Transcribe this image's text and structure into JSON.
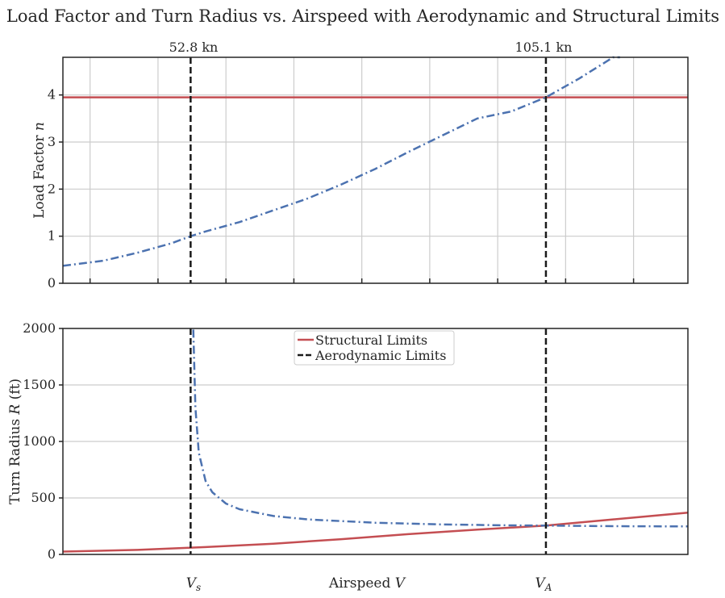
{
  "chart_data": [
    {
      "type": "line",
      "title": "Load Factor and Turn Radius vs. Airspeed with Aerodynamic and Structural Limits",
      "ylabel": "Load Factor n",
      "xlim": [
        34,
        126
      ],
      "ylim": [
        0,
        4.8
      ],
      "yticks": [
        0,
        1,
        2,
        3,
        4
      ],
      "vlines": [
        {
          "x": 52.8,
          "label": "52.8 kn",
          "color": "#1a1a1a",
          "style": "dashed"
        },
        {
          "x": 105.1,
          "label": "105.1 kn",
          "color": "#1a1a1a",
          "style": "dashed"
        }
      ],
      "hline": {
        "y": 3.95,
        "color": "#c44e52"
      },
      "series": [
        {
          "color": "#4c72b0",
          "style": "dashdot",
          "x": [
            34,
            40,
            45,
            50,
            52.8,
            55,
            60,
            65,
            70,
            75,
            80,
            85,
            90,
            95,
            100,
            105.1,
            110,
            115,
            116
          ],
          "values": [
            0.37,
            0.48,
            0.65,
            0.85,
            1.0,
            1.1,
            1.3,
            1.55,
            1.8,
            2.1,
            2.43,
            2.8,
            3.15,
            3.5,
            3.65,
            3.95,
            4.35,
            4.8,
            4.8
          ]
        }
      ],
      "grid": true
    },
    {
      "type": "line",
      "ylabel": "Turn Radius R (ft)",
      "xlabel": "Airspeed V",
      "xlim": [
        34,
        126
      ],
      "ylim": [
        0,
        2000
      ],
      "yticks": [
        0,
        500,
        1000,
        1500,
        2000
      ],
      "xtick_labels": [
        {
          "x": 52.8,
          "label": "V_s"
        },
        {
          "x": 105.1,
          "label": "V_A"
        }
      ],
      "legend": {
        "placement": "top-center",
        "entries": [
          {
            "name": "Structural Limits",
            "color": "#c44e52",
            "style": "solid"
          },
          {
            "name": "Aerodynamic Limits",
            "color": "#1a1a1a",
            "style": "dashed"
          }
        ]
      },
      "series": [
        {
          "name": "Structural Limits",
          "color": "#c44e52",
          "style": "solid",
          "x": [
            34,
            45,
            55,
            65,
            75,
            85,
            95,
            105.1,
            115,
            126
          ],
          "values": [
            25,
            40,
            65,
            95,
            135,
            180,
            220,
            255,
            310,
            370
          ]
        },
        {
          "color": "#4c72b0",
          "style": "dashdot",
          "x": [
            53.2,
            53.5,
            54,
            55,
            56,
            58,
            60,
            65,
            70,
            80,
            90,
            100,
            105.1,
            115,
            126
          ],
          "values": [
            1990,
            1300,
            900,
            650,
            550,
            450,
            400,
            340,
            310,
            280,
            265,
            257,
            255,
            250,
            248
          ]
        }
      ],
      "vlines": [
        {
          "x": 52.8,
          "color": "#1a1a1a",
          "style": "dashed"
        },
        {
          "x": 105.1,
          "color": "#1a1a1a",
          "style": "dashed"
        }
      ],
      "grid": true
    }
  ],
  "text": {
    "title": "Load Factor and Turn Radius vs. Airspeed with Aerodynamic and Structural Limits",
    "top_ylabel_main": "Load Factor ",
    "top_ylabel_var": "n",
    "bot_ylabel_main": "Turn Radius ",
    "bot_ylabel_var": "R",
    "bot_ylabel_unit": " (ft)",
    "xlabel_main": "Airspeed ",
    "xlabel_var": "V",
    "vs_var": "V",
    "vs_sub": "s",
    "va_var": "V",
    "va_sub": "A",
    "vline1_label": "52.8 kn",
    "vline2_label": "105.1 kn",
    "legend_structural": "Structural Limits",
    "legend_aero": "Aerodynamic Limits"
  }
}
